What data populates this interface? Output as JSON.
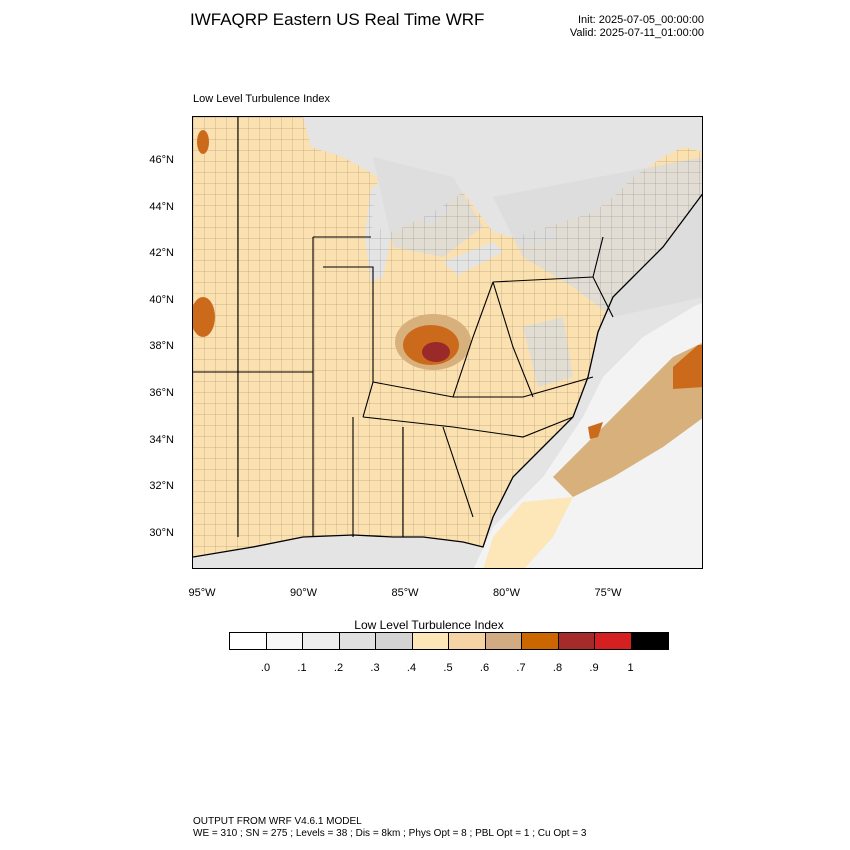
{
  "header": {
    "title": "IWFAQRP Eastern US Real Time WRF",
    "init": "Init: 2025-07-05_00:00:00",
    "valid": "Valid: 2025-07-11_01:00:00"
  },
  "map": {
    "subtitle": "Low Level Turbulence Index",
    "lat_labels": [
      "46°N",
      "44°N",
      "42°N",
      "40°N",
      "38°N",
      "36°N",
      "34°N",
      "32°N",
      "30°N"
    ],
    "lon_labels": [
      "95°W",
      "90°W",
      "85°W",
      "80°W",
      "75°W"
    ],
    "colors": {
      "land_base": "#fbe0b0",
      "light_grey": "#e4e4e4",
      "mid_grey": "#d3d3d3",
      "ocean_light": "#f3f3f3",
      "tan": "#d8b07c",
      "orange": "#cc6a1c",
      "dark_red": "#9a2a2a"
    }
  },
  "colorbar": {
    "title": "Low Level Turbulence Index",
    "colors": [
      "#ffffff",
      "#f7f7f7",
      "#eeeeee",
      "#e0e0e0",
      "#d3d3d3",
      "#fde6b8",
      "#f6d3a5",
      "#d3ab82",
      "#cc6600",
      "#a52a2a",
      "#d42020",
      "#000000"
    ],
    "tick_labels": [
      ".0",
      ".1",
      ".2",
      ".3",
      ".4",
      ".5",
      ".6",
      ".7",
      ".8",
      ".9",
      "1"
    ]
  },
  "footer": {
    "line1": "OUTPUT FROM WRF V4.6.1 MODEL",
    "line2": "WE = 310 ; SN = 275 ; Levels = 38 ; Dis = 8km ; Phys Opt = 8 ; PBL Opt = 1 ; Cu Opt = 3"
  }
}
